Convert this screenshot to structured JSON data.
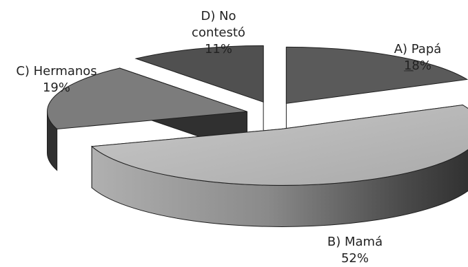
{
  "chart_data": {
    "type": "pie",
    "style": "3d-exploded",
    "slices": [
      {
        "label": "A) Papá",
        "percent_label": "18%",
        "value": 18
      },
      {
        "label": "B) Mamá",
        "percent_label": "52%",
        "value": 52
      },
      {
        "label": "C) Hermanos",
        "percent_label": "19%",
        "value": 19
      },
      {
        "label": "D) No contestó",
        "label_lines": [
          "D) No",
          "contestó"
        ],
        "percent_label": "11%",
        "value": 11
      }
    ],
    "colors": {
      "A": "#5a5a5a",
      "B": "#b9b9b9",
      "C": "#7c7c7c",
      "D": "#505050",
      "side": "#303030",
      "outline": "#1e1e1e"
    },
    "legend": "none"
  }
}
